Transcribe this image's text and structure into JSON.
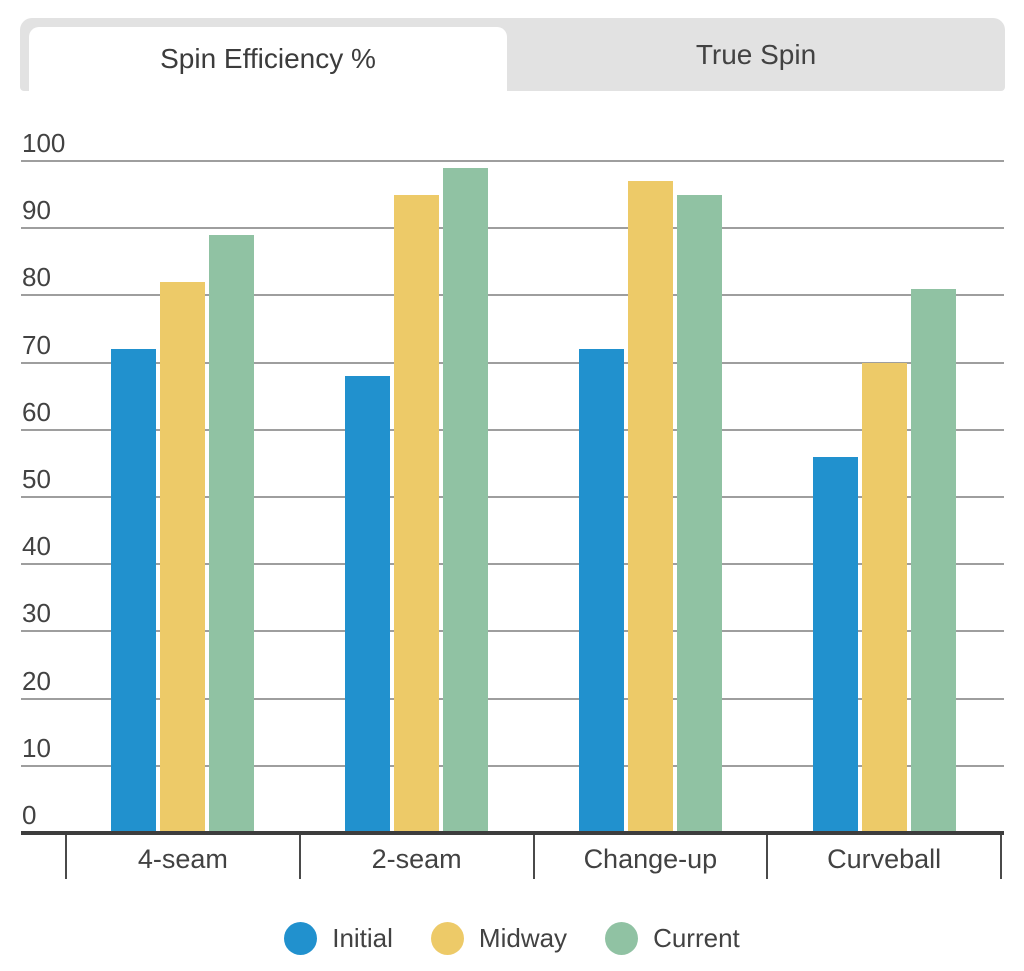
{
  "tabs": [
    {
      "label": "Spin Efficiency %",
      "active": true
    },
    {
      "label": "True Spin",
      "active": false
    }
  ],
  "chart_data": {
    "type": "bar",
    "title": "Spin Efficiency %",
    "categories": [
      "4-seam",
      "2-seam",
      "Change-up",
      "Curveball"
    ],
    "series": [
      {
        "name": "Initial",
        "color": "#2191ce",
        "values": [
          72,
          68,
          72,
          56
        ]
      },
      {
        "name": "Midway",
        "color": "#edca68",
        "values": [
          82,
          95,
          97,
          70
        ]
      },
      {
        "name": "Current",
        "color": "#90c2a3",
        "values": [
          89,
          99,
          95,
          81
        ]
      }
    ],
    "xlabel": "",
    "ylabel": "",
    "ylim": [
      0,
      100
    ],
    "yticks": [
      0,
      10,
      20,
      30,
      40,
      50,
      60,
      70,
      80,
      90,
      100
    ],
    "grid": true,
    "legend_position": "bottom"
  },
  "colors": {
    "grid": "#9e9e9e",
    "axis": "#3d3d3d",
    "separator": "#4a4a4a",
    "text": "#424242",
    "tab_bg": "#e2e2e2",
    "tab_active_bg": "#ffffff"
  }
}
